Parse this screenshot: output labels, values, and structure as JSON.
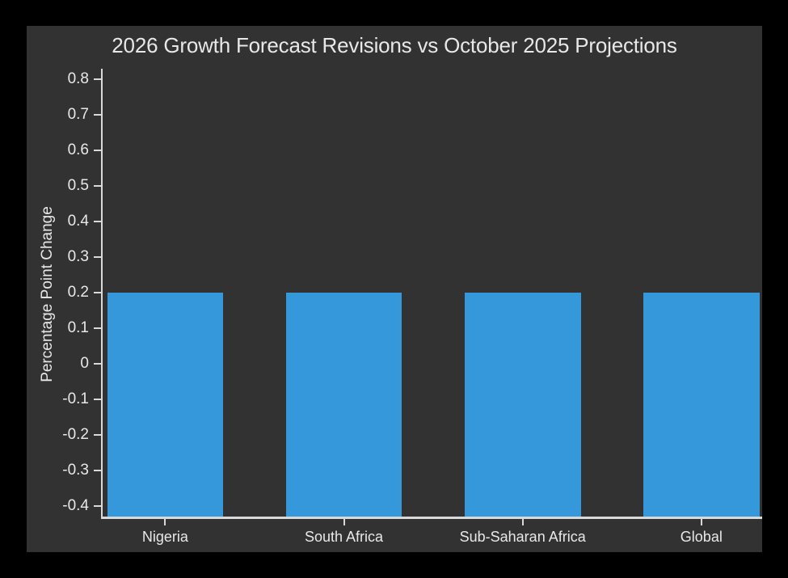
{
  "chart_data": {
    "type": "bar",
    "title": "2026 Growth Forecast Revisions vs October 2025 Projections",
    "xlabel": "",
    "ylabel": "Percentage Point Change",
    "categories": [
      "Nigeria",
      "South Africa",
      "Sub-Saharan Africa",
      "Global"
    ],
    "values": [
      0.2,
      0.2,
      0.2,
      0.2
    ],
    "bar_baseline": "plot-bottom",
    "bar_width": 0.65,
    "ylim": [
      -0.43,
      0.83
    ],
    "xlim": [
      -0.35,
      3.34
    ],
    "yticks": [
      0.8,
      0.7,
      0.6,
      0.5,
      0.4,
      0.3,
      0.2,
      0.1,
      0,
      -0.1,
      -0.2,
      -0.3,
      -0.4
    ],
    "ytick_labels": [
      "0.8",
      "0.7",
      "0.6",
      "0.5",
      "0.4",
      "0.3",
      "0.2",
      "0.1",
      "0",
      "-0.1",
      "-0.2",
      "-0.3",
      "-0.4"
    ],
    "grid": "off",
    "legend": "none"
  },
  "colors": {
    "canvas_bg": "#000000",
    "figure_bg": "#323232",
    "text": "#e8e8e8",
    "axis": "#d9d9d9",
    "bar": "#3598db"
  }
}
